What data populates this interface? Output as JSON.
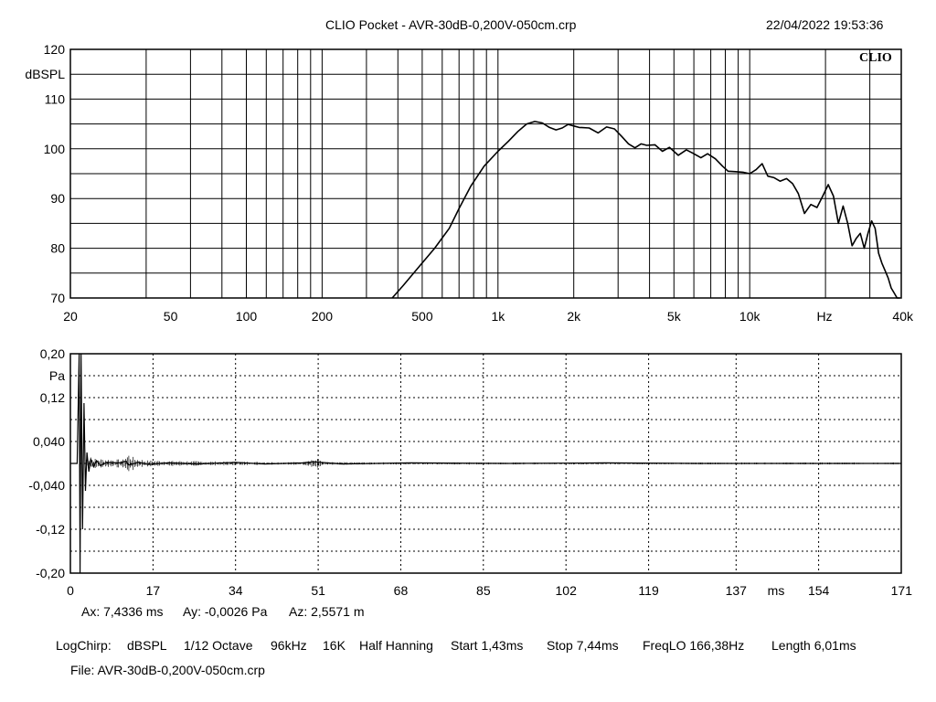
{
  "header": {
    "title": "CLIO Pocket - AVR-30dB-0,200V-050cm.crp",
    "datetime": "22/04/2022 19:53:36",
    "brand": "CLIO"
  },
  "readout": {
    "ax": "Ax: 7,4336 ms",
    "ay": "Ay: -0,0026 Pa",
    "az": "Az: 2,5571 m"
  },
  "settings": {
    "items": [
      "LogChirp:",
      "dBSPL",
      "1/12 Octave",
      "96kHz",
      "16K",
      "Half Hanning",
      "Start 1,43ms",
      "Stop 7,44ms",
      "FreqLO 166,38Hz",
      "Length 6,01ms"
    ]
  },
  "file": {
    "label": "File: AVR-30dB-0,200V-050cm.crp"
  },
  "chart_data": [
    {
      "type": "line",
      "name": "frequency-response",
      "xscale": "log",
      "xlim": [
        20,
        40000
      ],
      "ylim": [
        70,
        120
      ],
      "ylabel": "dBSPL",
      "xlabel": "Hz",
      "y_ticks": [
        "70",
        "80",
        "90",
        "100",
        "110",
        "120"
      ],
      "x_ticks": [
        {
          "v": 20,
          "label": "20"
        },
        {
          "v": 50,
          "label": "50"
        },
        {
          "v": 100,
          "label": "100"
        },
        {
          "v": 200,
          "label": "200"
        },
        {
          "v": 500,
          "label": "500"
        },
        {
          "v": 1000,
          "label": "1k"
        },
        {
          "v": 2000,
          "label": "2k"
        },
        {
          "v": 5000,
          "label": "5k"
        },
        {
          "v": 10000,
          "label": "10k"
        },
        {
          "v": 40000,
          "label": "40k"
        }
      ],
      "grid": "on",
      "x": [
        380,
        420,
        480,
        560,
        640,
        700,
        780,
        880,
        1000,
        1100,
        1200,
        1300,
        1400,
        1500,
        1600,
        1700,
        1800,
        1900,
        2000,
        2100,
        2300,
        2500,
        2700,
        2900,
        3100,
        3300,
        3500,
        3700,
        3900,
        4200,
        4500,
        4800,
        5200,
        5600,
        6000,
        6400,
        6800,
        7300,
        7800,
        8200,
        8800,
        9400,
        10000,
        10600,
        11200,
        11800,
        12500,
        13200,
        14000,
        14800,
        15600,
        16500,
        17500,
        18500,
        19500,
        20500,
        21500,
        22500,
        23500,
        24500,
        25500,
        26500,
        27500,
        28500,
        29500,
        30500,
        31500,
        32500,
        33500,
        34500,
        35500,
        36500,
        37500,
        38500,
        39500
      ],
      "y": [
        70,
        72.5,
        76,
        80,
        84,
        88,
        92.5,
        96.5,
        99.5,
        101.5,
        103.5,
        105,
        105.5,
        105.2,
        104.3,
        103.8,
        104.2,
        104.9,
        104.6,
        104.3,
        104.2,
        103.2,
        104.4,
        104,
        102.5,
        101,
        100.2,
        101,
        100.7,
        100.8,
        99.5,
        100.3,
        98.7,
        99.8,
        99,
        98.2,
        99,
        98,
        96.5,
        95.5,
        95.4,
        95.3,
        95,
        95.8,
        97,
        94.5,
        94.2,
        93.5,
        94,
        93,
        91,
        87,
        88.8,
        88.2,
        90.5,
        92.8,
        90.5,
        85,
        88.5,
        85,
        80.5,
        82,
        83,
        80,
        83,
        85.5,
        84,
        79,
        77,
        75.5,
        74,
        72,
        71,
        70,
        70
      ]
    },
    {
      "type": "line",
      "name": "impulse-response",
      "xlim": [
        0,
        171
      ],
      "ylim": [
        -0.2,
        0.2
      ],
      "ylabel": "Pa",
      "xlabel": "ms",
      "y_ticks": [
        "0,20",
        "0,12",
        "0,040",
        "-0,040",
        "-0,12",
        "-0,20"
      ],
      "x_ticks": [
        "0",
        "17",
        "34",
        "51",
        "68",
        "85",
        "102",
        "119",
        "137",
        "154",
        "171"
      ],
      "grid": "on",
      "x": [
        0,
        1.4,
        1.8,
        2.0,
        2.2,
        2.5,
        2.8,
        3.1,
        3.4,
        3.8,
        4.2,
        4.8,
        5.4,
        6.2,
        7.5,
        10,
        11.5,
        12,
        14,
        16,
        20,
        26,
        34,
        40,
        48,
        50,
        56,
        70,
        90,
        110,
        130,
        150,
        171
      ],
      "y": [
        0,
        0,
        0.2,
        -0.2,
        0.2,
        -0.12,
        0.11,
        -0.05,
        0.02,
        -0.015,
        0.008,
        -0.006,
        0.005,
        -0.004,
        0.002,
        0.001,
        0.004,
        -0.003,
        0.002,
        -0.002,
        0.001,
        -0.001,
        0.002,
        -0.001,
        0.001,
        0.003,
        -0.001,
        0.001,
        0,
        0.001,
        0,
        0,
        0
      ]
    }
  ]
}
